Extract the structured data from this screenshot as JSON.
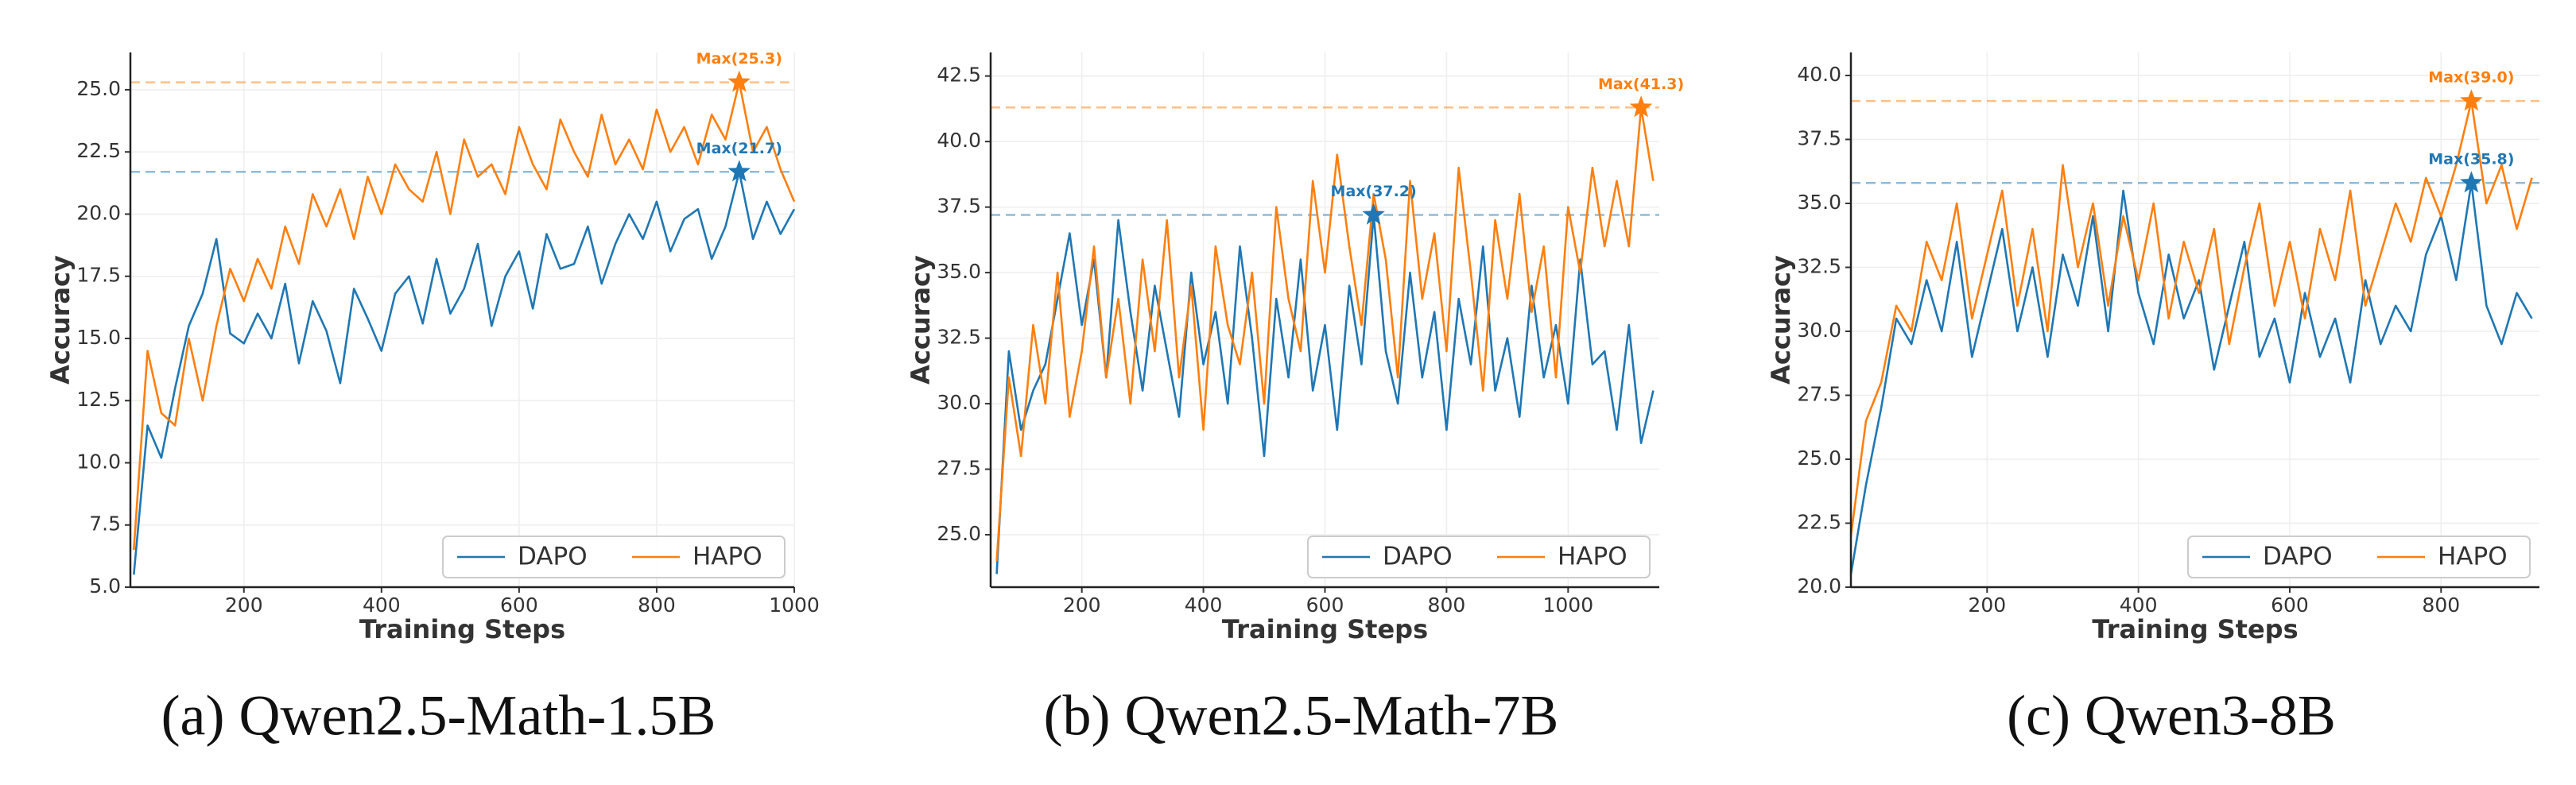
{
  "chart_data": [
    {
      "type": "line",
      "caption": "(a) Qwen2.5-Math-1.5B",
      "xlabel": "Training Steps",
      "ylabel": "Accuracy",
      "xlim": [
        35,
        1000
      ],
      "ylim": [
        5,
        26.5
      ],
      "xticks": [
        200,
        400,
        600,
        800,
        1000
      ],
      "yticks": [
        {
          "value": 5,
          "label": "5.0"
        },
        {
          "value": 7.5,
          "label": "7.5"
        },
        {
          "value": 10,
          "label": "10.0"
        },
        {
          "value": 12.5,
          "label": "12.5"
        },
        {
          "value": 15,
          "label": "15.0"
        },
        {
          "value": 17.5,
          "label": "17.5"
        },
        {
          "value": 20,
          "label": "20.0"
        },
        {
          "value": 22.5,
          "label": "22.5"
        },
        {
          "value": 25,
          "label": "25.0"
        }
      ],
      "grid": true,
      "legend": "lower right",
      "x": [
        40,
        60,
        80,
        100,
        120,
        140,
        160,
        180,
        200,
        220,
        240,
        260,
        280,
        300,
        320,
        340,
        360,
        380,
        400,
        420,
        440,
        460,
        480,
        500,
        520,
        540,
        560,
        580,
        600,
        620,
        640,
        660,
        680,
        700,
        720,
        740,
        760,
        780,
        800,
        820,
        840,
        860,
        880,
        900,
        920,
        940,
        960,
        980,
        1000
      ],
      "series": [
        {
          "name": "DAPO",
          "color": "#1f77b4",
          "values": [
            5.5,
            11.5,
            10.2,
            13.0,
            15.5,
            16.8,
            19.0,
            15.2,
            14.8,
            16.0,
            15.0,
            17.2,
            14.0,
            16.5,
            15.3,
            13.2,
            17.0,
            15.8,
            14.5,
            16.8,
            17.5,
            15.6,
            18.2,
            16.0,
            17.0,
            18.8,
            15.5,
            17.5,
            18.5,
            16.2,
            19.2,
            17.8,
            18.0,
            19.5,
            17.2,
            18.8,
            20.0,
            19.0,
            20.5,
            18.5,
            19.8,
            20.2,
            18.2,
            19.5,
            21.7,
            19.0,
            20.5,
            19.2,
            20.2
          ]
        },
        {
          "name": "HAPO",
          "color": "#ff7f0e",
          "values": [
            6.5,
            14.5,
            12.0,
            11.5,
            15.0,
            12.5,
            15.5,
            17.8,
            16.5,
            18.2,
            17.0,
            19.5,
            18.0,
            20.8,
            19.5,
            21.0,
            19.0,
            21.5,
            20.0,
            22.0,
            21.0,
            20.5,
            22.5,
            20.0,
            23.0,
            21.5,
            22.0,
            20.8,
            23.5,
            22.0,
            21.0,
            23.8,
            22.5,
            21.5,
            24.0,
            22.0,
            23.0,
            21.8,
            24.2,
            22.5,
            23.5,
            22.0,
            24.0,
            23.0,
            25.3,
            22.5,
            23.5,
            21.8,
            20.5
          ]
        }
      ],
      "annotations": [
        {
          "text": "Max(21.7)",
          "x": 920,
          "y": 21.7,
          "color": "#1f77b4"
        },
        {
          "text": "Max(25.3)",
          "x": 920,
          "y": 25.3,
          "color": "#ff7f0e"
        }
      ]
    },
    {
      "type": "line",
      "caption": "(b) Qwen2.5-Math-7B",
      "xlabel": "Training Steps",
      "ylabel": "Accuracy",
      "xlim": [
        50,
        1150
      ],
      "ylim": [
        23,
        43.4
      ],
      "xticks": [
        200,
        400,
        600,
        800,
        1000
      ],
      "yticks": [
        {
          "value": 25,
          "label": "25.0"
        },
        {
          "value": 27.5,
          "label": "27.5"
        },
        {
          "value": 30,
          "label": "30.0"
        },
        {
          "value": 32.5,
          "label": "32.5"
        },
        {
          "value": 35,
          "label": "35.0"
        },
        {
          "value": 37.5,
          "label": "37.5"
        },
        {
          "value": 40,
          "label": "40.0"
        },
        {
          "value": 42.5,
          "label": "42.5"
        }
      ],
      "grid": true,
      "legend": "lower right",
      "x": [
        60,
        80,
        100,
        120,
        140,
        160,
        180,
        200,
        220,
        240,
        260,
        280,
        300,
        320,
        340,
        360,
        380,
        400,
        420,
        440,
        460,
        480,
        500,
        520,
        540,
        560,
        580,
        600,
        620,
        640,
        660,
        680,
        700,
        720,
        740,
        760,
        780,
        800,
        820,
        840,
        860,
        880,
        900,
        920,
        940,
        960,
        980,
        1000,
        1020,
        1040,
        1060,
        1080,
        1100,
        1120,
        1140
      ],
      "series": [
        {
          "name": "DAPO",
          "color": "#1f77b4",
          "values": [
            23.5,
            32,
            29,
            30.5,
            31.5,
            34,
            36.5,
            33,
            35.5,
            31,
            37,
            33.5,
            30.5,
            34.5,
            32,
            29.5,
            35,
            31.5,
            33.5,
            30,
            36,
            32.5,
            28,
            34,
            31,
            35.5,
            30.5,
            33,
            29,
            34.5,
            31.5,
            37.2,
            32,
            30,
            35,
            31,
            33.5,
            29,
            34,
            31.5,
            36,
            30.5,
            32.5,
            29.5,
            34.5,
            31,
            33,
            30,
            35.5,
            31.5,
            32,
            29,
            33,
            28.5,
            30.5
          ]
        },
        {
          "name": "HAPO",
          "color": "#ff7f0e",
          "values": [
            24,
            31,
            28,
            33,
            30,
            35,
            29.5,
            32,
            36,
            31,
            34,
            30,
            35.5,
            32,
            37,
            31,
            34.5,
            29,
            36,
            33,
            31.5,
            35,
            30,
            37.5,
            34,
            32,
            38.5,
            35,
            39.5,
            36,
            33,
            38,
            35.5,
            31,
            38.5,
            34,
            36.5,
            32,
            39,
            35,
            30.5,
            37,
            34,
            38,
            33.5,
            36,
            31,
            37.5,
            35,
            39,
            36,
            38.5,
            36,
            41.3,
            38.5
          ]
        }
      ],
      "annotations": [
        {
          "text": "Max(37.2)",
          "x": 680,
          "y": 37.2,
          "color": "#1f77b4"
        },
        {
          "text": "Max(41.3)",
          "x": 1120,
          "y": 41.3,
          "color": "#ff7f0e"
        }
      ]
    },
    {
      "type": "line",
      "caption": "(c) Qwen3-8B",
      "xlabel": "Training Steps",
      "ylabel": "Accuracy",
      "xlim": [
        20,
        930
      ],
      "ylim": [
        20,
        40.9
      ],
      "xticks": [
        200,
        400,
        600,
        800
      ],
      "yticks": [
        {
          "value": 20,
          "label": "20.0"
        },
        {
          "value": 22.5,
          "label": "22.5"
        },
        {
          "value": 25,
          "label": "25.0"
        },
        {
          "value": 27.5,
          "label": "27.5"
        },
        {
          "value": 30,
          "label": "30.0"
        },
        {
          "value": 32.5,
          "label": "32.5"
        },
        {
          "value": 35,
          "label": "35.0"
        },
        {
          "value": 37.5,
          "label": "37.5"
        },
        {
          "value": 40,
          "label": "40.0"
        }
      ],
      "grid": true,
      "legend": "lower right",
      "x": [
        20,
        40,
        60,
        80,
        100,
        120,
        140,
        160,
        180,
        200,
        220,
        240,
        260,
        280,
        300,
        320,
        340,
        360,
        380,
        400,
        420,
        440,
        460,
        480,
        500,
        520,
        540,
        560,
        580,
        600,
        620,
        640,
        660,
        680,
        700,
        720,
        740,
        760,
        780,
        800,
        820,
        840,
        860,
        880,
        900,
        920
      ],
      "series": [
        {
          "name": "DAPO",
          "color": "#1f77b4",
          "values": [
            20.5,
            24,
            27,
            30.5,
            29.5,
            32,
            30,
            33.5,
            29,
            31.5,
            34,
            30,
            32.5,
            29,
            33,
            31,
            34.5,
            30,
            35.5,
            31.5,
            29.5,
            33,
            30.5,
            32,
            28.5,
            31,
            33.5,
            29,
            30.5,
            28,
            31.5,
            29,
            30.5,
            28,
            32,
            29.5,
            31,
            30,
            33,
            34.5,
            32,
            35.8,
            31,
            29.5,
            31.5,
            30.5
          ]
        },
        {
          "name": "HAPO",
          "color": "#ff7f0e",
          "values": [
            22,
            26.5,
            28,
            31,
            30,
            33.5,
            32,
            35,
            30.5,
            33,
            35.5,
            31,
            34,
            30,
            36.5,
            32.5,
            35,
            31,
            34.5,
            32,
            35,
            30.5,
            33.5,
            31.5,
            34,
            29.5,
            32.5,
            35,
            31,
            33.5,
            30.5,
            34,
            32,
            35.5,
            31,
            33,
            35,
            33.5,
            36,
            34.5,
            36.5,
            39.0,
            35,
            36.5,
            34,
            36
          ]
        }
      ],
      "annotations": [
        {
          "text": "Max(35.8)",
          "x": 840,
          "y": 35.8,
          "color": "#1f77b4"
        },
        {
          "text": "Max(39.0)",
          "x": 840,
          "y": 39.0,
          "color": "#ff7f0e"
        }
      ]
    }
  ]
}
